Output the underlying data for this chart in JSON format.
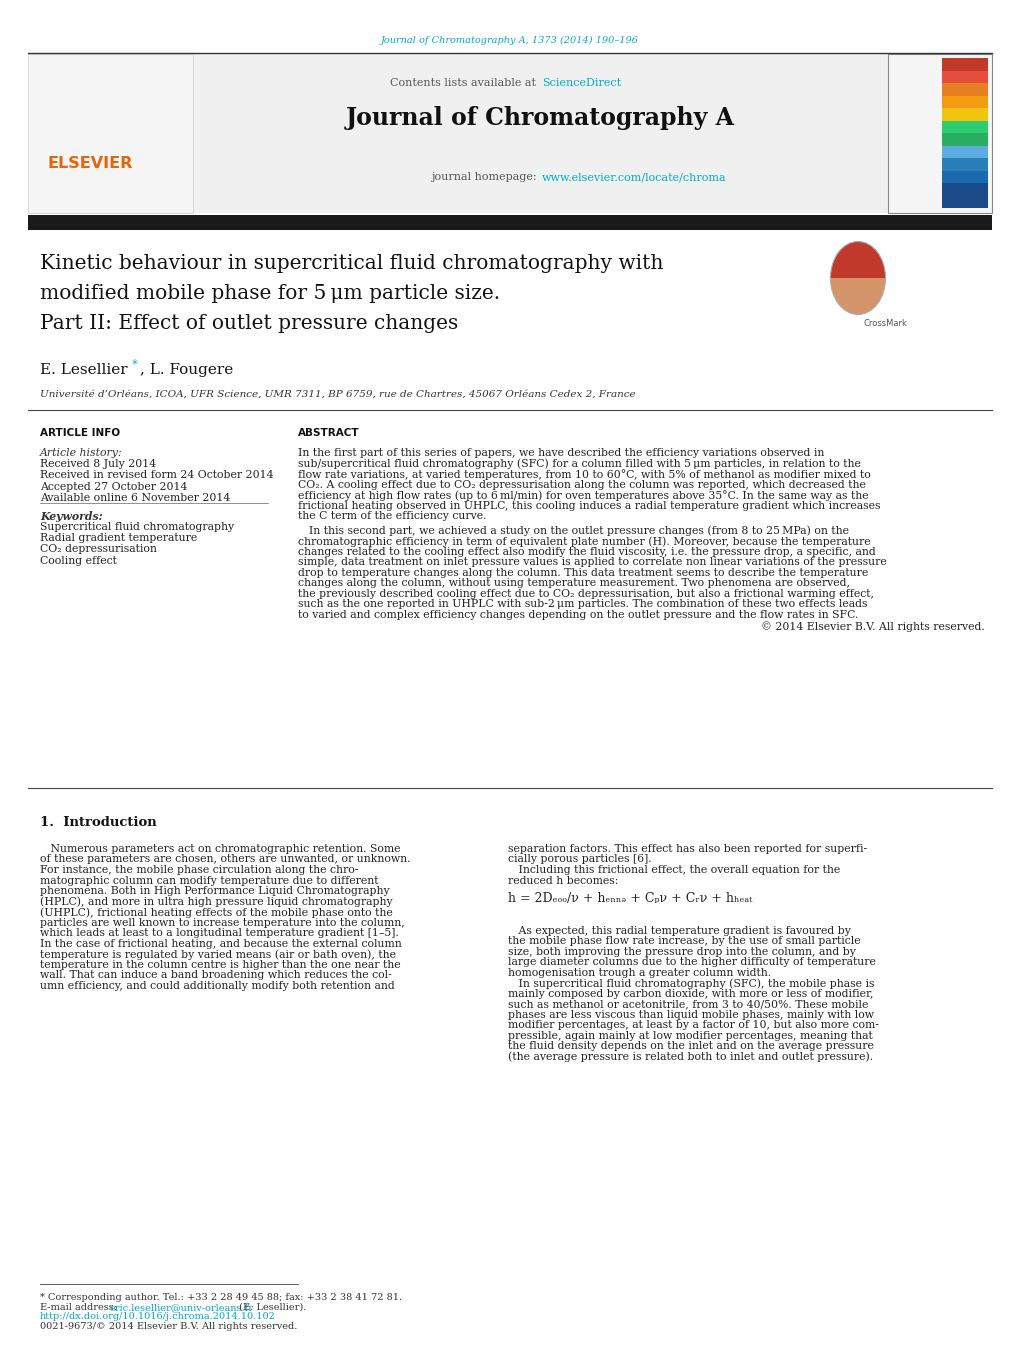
{
  "page_width": 10.2,
  "page_height": 13.51,
  "bg_color": "#ffffff",
  "journal_ref_text": "Journal of Chromatography A, 1373 (2014) 190–196",
  "journal_ref_color": "#00aacc",
  "header_sciencedirect_color": "#00aacc",
  "homepage_url_color": "#00aacc",
  "elsevier_color": "#e8630a",
  "author_star_color": "#00aacc",
  "link_color": "#00aacc",
  "dark_bar_color": "#1a1a1a",
  "article_title_line1": "Kinetic behaviour in supercritical fluid chromatography with",
  "article_title_line2": "modified mobile phase for 5 μm particle size.",
  "article_title_line3": "Part II: Effect of outlet pressure changes",
  "affiliation": "Université d’Orléans, ICOA, UFR Science, UMR 7311, BP 6759, rue de Chartres, 45067 Orléans Cedex 2, France",
  "para1_lines": [
    "In the first part of this series of papers, we have described the efficiency variations observed in",
    "sub/supercritical fluid chromatography (SFC) for a column filled with 5 μm particles, in relation to the",
    "flow rate variations, at varied temperatures, from 10 to 60°C, with 5% of methanol as modifier mixed to",
    "CO₂. A cooling effect due to CO₂ depressurisation along the column was reported, which decreased the",
    "efficiency at high flow rates (up to 6 ml/min) for oven temperatures above 35°C. In the same way as the",
    "frictional heating observed in UHPLC, this cooling induces a radial temperature gradient which increases",
    "the C term of the efficiency curve."
  ],
  "para2_lines": [
    " In this second part, we achieved a study on the outlet pressure changes (from 8 to 25 MPa) on the",
    "chromatographic efficiency in term of equivalent plate number (H). Moreover, because the temperature",
    "changes related to the cooling effect also modify the fluid viscosity, i.e. the pressure drop, a specific, and",
    "simple, data treatment on inlet pressure values is applied to correlate non linear variations of the pressure",
    "drop to temperature changes along the column. This data treatment seems to describe the temperature",
    "changes along the column, without using temperature measurement. Two phenomena are observed,",
    "the previously described cooling effect due to CO₂ depressurisation, but also a frictional warming effect,",
    "such as the one reported in UHPLC with sub-2 μm particles. The combination of these two effects leads",
    "to varied and complex efficiency changes depending on the outlet pressure and the flow rates in SFC."
  ],
  "intro_lines_left": [
    "   Numerous parameters act on chromatographic retention. Some",
    "of these parameters are chosen, others are unwanted, or unknown.",
    "For instance, the mobile phase circulation along the chro-",
    "matographic column can modify temperature due to different",
    "phenomena. Both in High Performance Liquid Chromatography",
    "(HPLC), and more in ultra high pressure liquid chromatography",
    "(UHPLC), frictional heating effects of the mobile phase onto the",
    "particles are well known to increase temperature into the column,",
    "which leads at least to a longitudinal temperature gradient [1–5].",
    "In the case of frictional heating, and because the external column",
    "temperature is regulated by varied means (air or bath oven), the",
    "temperature in the column centre is higher than the one near the",
    "wall. That can induce a band broadening which reduces the col-",
    "umn efficiency, and could additionally modify both retention and"
  ],
  "intro_lines_right": [
    "separation factors. This effect has also been reported for superfi-",
    "cially porous particles [6].",
    "   Including this frictional effect, the overall equation for the",
    "reduced h becomes:"
  ],
  "right_lines2": [
    "   As expected, this radial temperature gradient is favoured by",
    "the mobile phase flow rate increase, by the use of small particle",
    "size, both improving the pressure drop into the column, and by",
    "large diameter columns due to the higher difficulty of temperature",
    "homogenisation trough a greater column width.",
    "   In supercritical fluid chromatography (SFC), the mobile phase is",
    "mainly composed by carbon dioxide, with more or less of modifier,",
    "such as methanol or acetonitrile, from 3 to 40/50%. These mobile",
    "phases are less viscous than liquid mobile phases, mainly with low",
    "modifier percentages, at least by a factor of 10, but also more com-",
    "pressible, again mainly at low modifier percentages, meaning that",
    "the fluid density depends on the inlet and on the average pressure",
    "(the average pressure is related both to inlet and outlet pressure)."
  ],
  "stripe_colors": [
    "#1a4a8a",
    "#1a4a8a",
    "#1a6ab0",
    "#2980b9",
    "#5dade2",
    "#27ae60",
    "#2ecc71",
    "#f1c40f",
    "#f39c12",
    "#e67e22",
    "#e74c3c",
    "#c0392b"
  ]
}
